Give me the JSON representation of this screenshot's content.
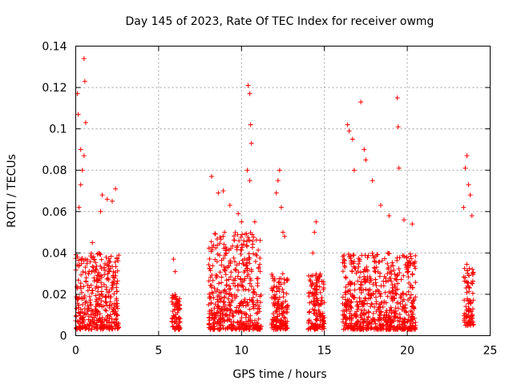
{
  "chart_data": {
    "type": "scatter",
    "title": "Day 145 of 2023, Rate Of TEC Index for receiver owmg",
    "xlabel": "GPS time / hours",
    "ylabel": "ROTI / TECUs",
    "xlim": [
      0,
      25
    ],
    "ylim": [
      0,
      0.14
    ],
    "xticks": [
      0,
      5,
      10,
      15,
      20,
      25
    ],
    "yticks": [
      0,
      0.02,
      0.04,
      0.06,
      0.08,
      0.1,
      0.12,
      0.14
    ],
    "grid": true,
    "marker": "+",
    "color": "#ff0000",
    "clusters": [
      {
        "x_range": [
          0.0,
          2.6
        ],
        "typical_y": [
          0.003,
          0.04
        ],
        "notable_points": [
          [
            0.1,
            0.117
          ],
          [
            0.15,
            0.107
          ],
          [
            0.3,
            0.09
          ],
          [
            0.5,
            0.134
          ],
          [
            0.55,
            0.123
          ],
          [
            0.6,
            0.103
          ],
          [
            0.5,
            0.087
          ],
          [
            0.4,
            0.08
          ],
          [
            0.3,
            0.073
          ],
          [
            0.2,
            0.062
          ],
          [
            1.6,
            0.068
          ],
          [
            1.9,
            0.066
          ],
          [
            2.4,
            0.071
          ],
          [
            2.2,
            0.065
          ],
          [
            1.5,
            0.06
          ],
          [
            1.0,
            0.045
          ]
        ]
      },
      {
        "x_range": [
          5.8,
          6.3
        ],
        "typical_y": [
          0.003,
          0.02
        ],
        "notable_points": [
          [
            5.9,
            0.037
          ],
          [
            6.0,
            0.031
          ]
        ]
      },
      {
        "x_range": [
          8.0,
          11.2
        ],
        "typical_y": [
          0.003,
          0.05
        ],
        "notable_points": [
          [
            8.2,
            0.077
          ],
          [
            8.6,
            0.069
          ],
          [
            8.9,
            0.07
          ],
          [
            9.3,
            0.063
          ],
          [
            10.4,
            0.121
          ],
          [
            10.5,
            0.117
          ],
          [
            10.55,
            0.102
          ],
          [
            10.6,
            0.093
          ],
          [
            10.35,
            0.08
          ],
          [
            10.5,
            0.075
          ],
          [
            9.8,
            0.059
          ],
          [
            10.8,
            0.055
          ],
          [
            10.0,
            0.055
          ]
        ]
      },
      {
        "x_range": [
          11.8,
          12.8
        ],
        "typical_y": [
          0.003,
          0.03
        ],
        "notable_points": [
          [
            12.3,
            0.08
          ],
          [
            12.2,
            0.075
          ],
          [
            12.1,
            0.069
          ],
          [
            12.4,
            0.062
          ],
          [
            12.5,
            0.05
          ],
          [
            12.6,
            0.048
          ]
        ]
      },
      {
        "x_range": [
          14.0,
          15.0
        ],
        "typical_y": [
          0.003,
          0.03
        ],
        "notable_points": [
          [
            14.5,
            0.055
          ],
          [
            14.4,
            0.05
          ],
          [
            14.3,
            0.04
          ]
        ]
      },
      {
        "x_range": [
          16.1,
          20.5
        ],
        "typical_y": [
          0.003,
          0.04
        ],
        "notable_points": [
          [
            16.4,
            0.102
          ],
          [
            16.5,
            0.099
          ],
          [
            16.7,
            0.095
          ],
          [
            17.2,
            0.113
          ],
          [
            17.5,
            0.085
          ],
          [
            17.4,
            0.09
          ],
          [
            16.8,
            0.08
          ],
          [
            19.4,
            0.115
          ],
          [
            19.45,
            0.101
          ],
          [
            19.5,
            0.081
          ],
          [
            19.8,
            0.056
          ],
          [
            20.3,
            0.054
          ],
          [
            18.9,
            0.058
          ],
          [
            18.4,
            0.063
          ],
          [
            17.9,
            0.075
          ]
        ]
      },
      {
        "x_range": [
          23.4,
          24.0
        ],
        "typical_y": [
          0.005,
          0.035
        ],
        "notable_points": [
          [
            23.6,
            0.087
          ],
          [
            23.5,
            0.081
          ],
          [
            23.7,
            0.073
          ],
          [
            23.8,
            0.068
          ],
          [
            23.9,
            0.058
          ],
          [
            23.4,
            0.062
          ]
        ]
      }
    ]
  }
}
